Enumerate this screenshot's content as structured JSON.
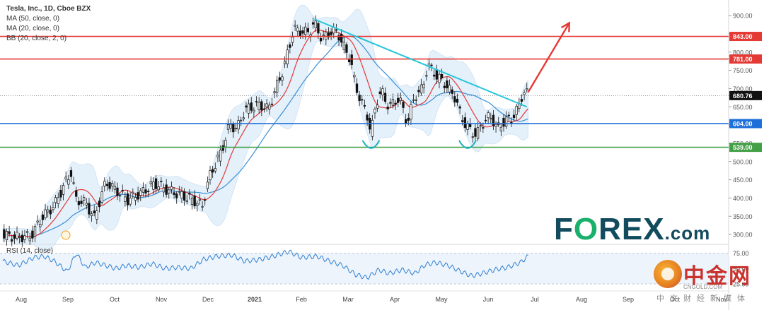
{
  "legend": {
    "title": "Tesla, Inc., 1D, Cboe BZX",
    "ma50": "MA (50, close, 0)",
    "ma20": "MA (20, close, 0)",
    "bb": "BB (20, close, 2, 0)",
    "rsi": "RSI (14, close)"
  },
  "brand": {
    "f": "F",
    "o": "O",
    "rex": "REX",
    "dotcom": ".com"
  },
  "cn_logo": {
    "name": "中金网",
    "url": "CNGOLD.COM",
    "sub": "中文财经新媒体"
  },
  "chart_data": {
    "type": "candlestick",
    "x_labels": [
      "Aug",
      "Sep",
      "Oct",
      "Nov",
      "Dec",
      "2021",
      "Feb",
      "Mar",
      "Apr",
      "May",
      "Jun",
      "Jul",
      "Aug",
      "Sep",
      "Oct",
      "Nov"
    ],
    "price_ticks": [
      300,
      350,
      400,
      450,
      500,
      550,
      600,
      650,
      700,
      750,
      800,
      850,
      900
    ],
    "price_tick_labels": [
      "300.00",
      "350.00",
      "400.00",
      "450.00",
      "500.00",
      "550.00",
      "600.00",
      "650.00",
      "700.00",
      "750.00",
      "800.00",
      "850.00",
      "900.00"
    ],
    "ylim": [
      275,
      935
    ],
    "current_price": 680.76,
    "current_price_label": "680.76",
    "levels": [
      {
        "value": 843,
        "label": "843.00",
        "color": "#e53935"
      },
      {
        "value": 781,
        "label": "781.00",
        "color": "#e53935"
      },
      {
        "value": 604,
        "label": "604.00",
        "color": "#1e6fd9"
      },
      {
        "value": 539,
        "label": "539.00",
        "color": "#43a047"
      }
    ],
    "rsi_ticks": [
      25,
      50,
      75
    ],
    "rsi_tick_labels": [
      "25.00",
      "50.00",
      "75.00"
    ],
    "rsi_ylim": [
      18,
      85
    ],
    "price_path": [
      [
        0,
        300
      ],
      [
        10,
        292
      ],
      [
        22,
        296
      ],
      [
        30,
        345
      ],
      [
        40,
        380
      ],
      [
        48,
        438
      ],
      [
        53,
        470
      ],
      [
        57,
        395
      ],
      [
        64,
        388
      ],
      [
        71,
        345
      ],
      [
        80,
        445
      ],
      [
        89,
        418
      ],
      [
        97,
        395
      ],
      [
        108,
        415
      ],
      [
        118,
        440
      ],
      [
        129,
        420
      ],
      [
        140,
        406
      ],
      [
        150,
        390
      ],
      [
        155,
        378
      ],
      [
        160,
        455
      ],
      [
        170,
        530
      ],
      [
        176,
        600
      ],
      [
        182,
        590
      ],
      [
        188,
        642
      ],
      [
        194,
        650
      ],
      [
        200,
        655
      ],
      [
        206,
        643
      ],
      [
        212,
        700
      ],
      [
        218,
        754
      ],
      [
        222,
        808
      ],
      [
        226,
        864
      ],
      [
        232,
        855
      ],
      [
        238,
        855
      ],
      [
        242,
        880
      ],
      [
        248,
        835
      ],
      [
        254,
        855
      ],
      [
        260,
        855
      ],
      [
        264,
        820
      ],
      [
        270,
        780
      ],
      [
        274,
        705
      ],
      [
        279,
        660
      ],
      [
        283,
        625
      ],
      [
        286,
        580
      ],
      [
        290,
        660
      ],
      [
        294,
        695
      ],
      [
        298,
        658
      ],
      [
        302,
        655
      ],
      [
        308,
        675
      ],
      [
        314,
        605
      ],
      [
        320,
        680
      ],
      [
        326,
        700
      ],
      [
        330,
        765
      ],
      [
        334,
        748
      ],
      [
        338,
        730
      ],
      [
        342,
        720
      ],
      [
        346,
        700
      ],
      [
        352,
        672
      ],
      [
        356,
        620
      ],
      [
        360,
        600
      ],
      [
        364,
        580
      ],
      [
        368,
        575
      ],
      [
        372,
        600
      ],
      [
        376,
        620
      ],
      [
        380,
        620
      ],
      [
        384,
        590
      ],
      [
        388,
        605
      ],
      [
        392,
        615
      ],
      [
        396,
        620
      ],
      [
        400,
        645
      ],
      [
        404,
        690
      ],
      [
        408,
        685
      ]
    ],
    "rsi_path": [
      [
        0,
        62
      ],
      [
        12,
        55
      ],
      [
        24,
        68
      ],
      [
        32,
        70
      ],
      [
        40,
        62
      ],
      [
        50,
        45
      ],
      [
        57,
        75
      ],
      [
        64,
        52
      ],
      [
        72,
        60
      ],
      [
        80,
        55
      ],
      [
        88,
        50
      ],
      [
        96,
        55
      ],
      [
        106,
        52
      ],
      [
        116,
        58
      ],
      [
        126,
        50
      ],
      [
        136,
        52
      ],
      [
        146,
        50
      ],
      [
        156,
        65
      ],
      [
        166,
        70
      ],
      [
        178,
        72
      ],
      [
        188,
        62
      ],
      [
        200,
        65
      ],
      [
        210,
        70
      ],
      [
        222,
        78
      ],
      [
        232,
        68
      ],
      [
        244,
        70
      ],
      [
        254,
        62
      ],
      [
        264,
        55
      ],
      [
        274,
        40
      ],
      [
        283,
        35
      ],
      [
        292,
        48
      ],
      [
        300,
        42
      ],
      [
        310,
        48
      ],
      [
        320,
        42
      ],
      [
        328,
        56
      ],
      [
        336,
        60
      ],
      [
        346,
        55
      ],
      [
        356,
        45
      ],
      [
        364,
        38
      ],
      [
        372,
        42
      ],
      [
        382,
        48
      ],
      [
        392,
        52
      ],
      [
        402,
        60
      ],
      [
        408,
        70
      ]
    ],
    "trendline": {
      "from": [
        242,
        890
      ],
      "to": [
        407,
        650
      ],
      "color": "#26c6da"
    },
    "projection": {
      "from": [
        408,
        690
      ],
      "to": [
        440,
        880
      ],
      "color": "#e53935"
    },
    "bottoms": [
      286,
      361
    ]
  }
}
